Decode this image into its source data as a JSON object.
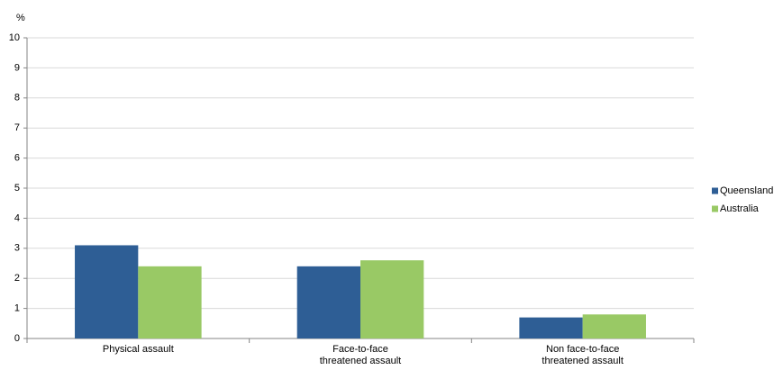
{
  "chart_data": {
    "type": "bar",
    "y_label": "%",
    "categories": [
      "Physical assault",
      "Face-to-face\nthreatened assault",
      "Non face-to-face\nthreatened assault"
    ],
    "series": [
      {
        "name": "Queensland",
        "color": "#2e5e95",
        "values": [
          3.1,
          2.4,
          0.7
        ]
      },
      {
        "name": "Australia",
        "color": "#99c965",
        "values": [
          2.4,
          2.6,
          0.8
        ]
      }
    ],
    "ylim": [
      0,
      10
    ],
    "yticks": [
      0,
      1,
      2,
      3,
      4,
      5,
      6,
      7,
      8,
      9,
      10
    ],
    "grid": true,
    "legend": "right"
  }
}
